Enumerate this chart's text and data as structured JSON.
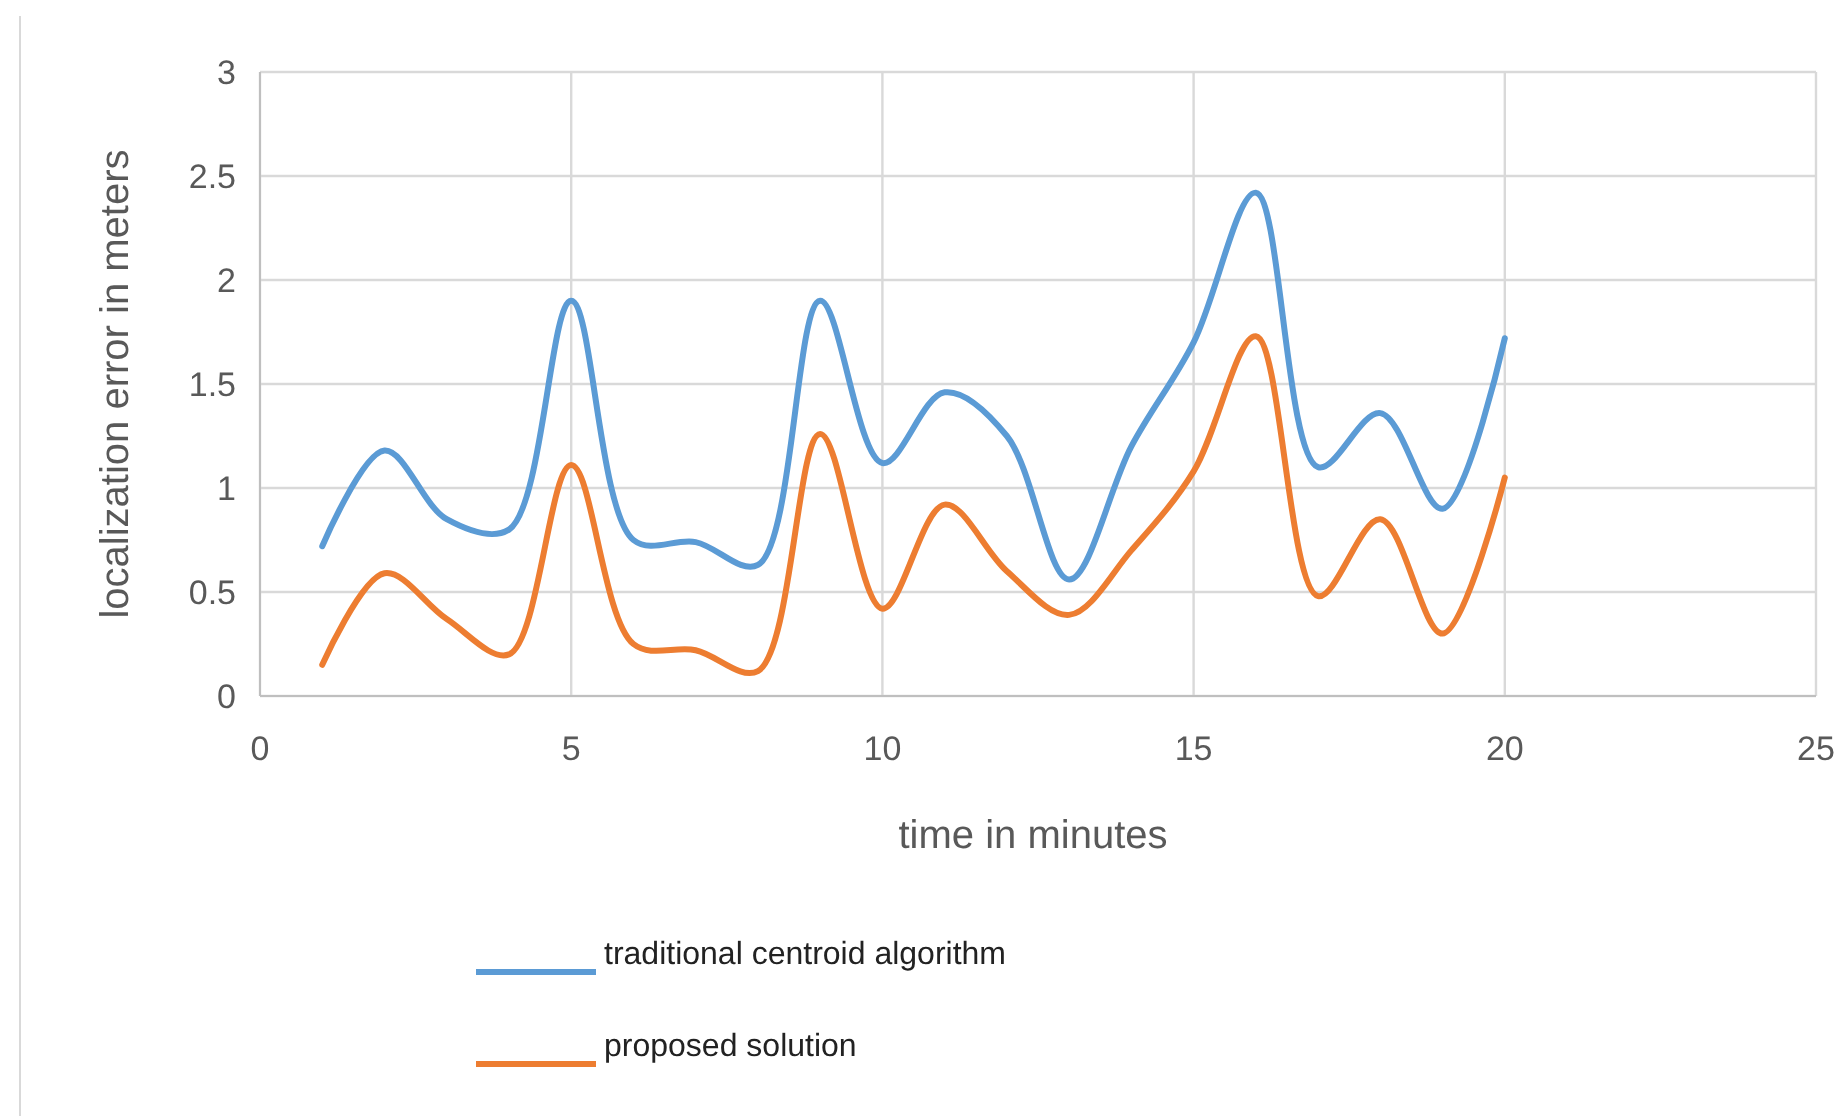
{
  "chart_data": {
    "type": "line",
    "xlabel": "time in minutes",
    "ylabel": "localization error in meters",
    "x": [
      1,
      2,
      3,
      4,
      5,
      6,
      7,
      8,
      9,
      10,
      11,
      12,
      13,
      14,
      15,
      16,
      17,
      18,
      19,
      20
    ],
    "series": [
      {
        "name": "traditional centroid algorithm",
        "color": "#5b9bd5",
        "values": [
          0.72,
          1.18,
          0.85,
          0.8,
          1.9,
          0.75,
          0.74,
          0.63,
          1.9,
          1.12,
          1.46,
          1.25,
          0.56,
          1.2,
          1.7,
          2.42,
          1.1,
          1.36,
          0.9,
          1.72
        ]
      },
      {
        "name": "proposed solution",
        "color": "#ed7d31",
        "values": [
          0.15,
          0.59,
          0.37,
          0.2,
          1.11,
          0.25,
          0.22,
          0.12,
          1.26,
          0.42,
          0.92,
          0.6,
          0.39,
          0.7,
          1.08,
          1.73,
          0.48,
          0.85,
          0.3,
          1.05
        ]
      }
    ],
    "xlim": [
      0,
      25
    ],
    "xticks": [
      0,
      5,
      10,
      15,
      20,
      25
    ],
    "ylim": [
      0,
      3
    ],
    "yticks": [
      0,
      0.5,
      1,
      1.5,
      2,
      2.5,
      3
    ],
    "grid": true,
    "legend": "bottom",
    "marker": "none",
    "line_style": "solid"
  }
}
